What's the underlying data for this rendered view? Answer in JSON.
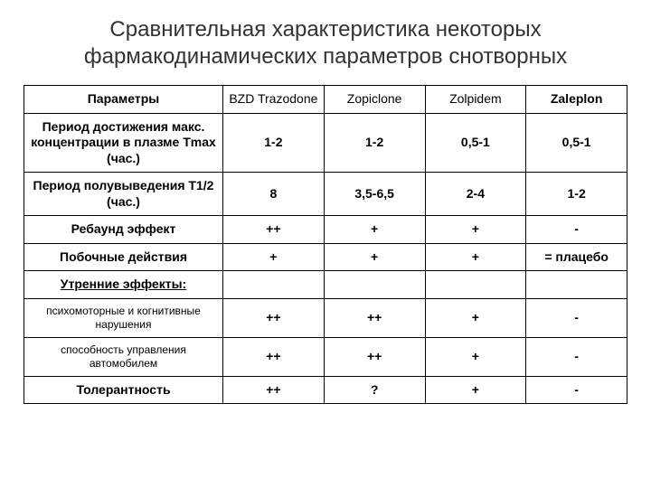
{
  "title": "Сравнительная характеристика некоторых фармакодинамических параметров снотворных",
  "table": {
    "header_param": "Параметры",
    "drugs": [
      {
        "label": "BZD Trazodone",
        "bold": false
      },
      {
        "label": "Zopiclone",
        "bold": false
      },
      {
        "label": "Zolpidem",
        "bold": false
      },
      {
        "label": "Zaleplon",
        "bold": true
      }
    ],
    "rows": [
      {
        "label": "Период достижения макс. концентрации в плазме Tmax (час.)",
        "label_style": "bold",
        "cells": [
          "1-2",
          "1-2",
          "0,5-1",
          "0,5-1"
        ]
      },
      {
        "label": "Период полувыведения T1/2 (час.)",
        "label_style": "bold",
        "cells": [
          "8",
          "3,5-6,5",
          "2-4",
          "1-2"
        ]
      },
      {
        "label": "Ребаунд эффект",
        "label_style": "bold",
        "cells": [
          "++",
          "+",
          "+",
          "-"
        ]
      },
      {
        "label": "Побочные действия",
        "label_style": "bold",
        "cells": [
          "+",
          "+",
          "+",
          "= плацебо"
        ]
      },
      {
        "label": "Утренние эффекты:",
        "label_style": "section",
        "cells": [
          "",
          "",
          "",
          ""
        ]
      },
      {
        "label": "психомоторные и когнитивные нарушения",
        "label_style": "sub",
        "cells": [
          "++",
          "++",
          "+",
          "-"
        ]
      },
      {
        "label": "способность управления автомобилем",
        "label_style": "sub",
        "cells": [
          "++",
          "++",
          "+",
          "-"
        ]
      },
      {
        "label": "Толерантность",
        "label_style": "bold",
        "cells": [
          "++",
          "?",
          "+",
          "-"
        ]
      }
    ]
  },
  "style": {
    "bg": "#ffffff",
    "text": "#000000",
    "title_color": "#333333",
    "border": "#000000",
    "title_fontsize": 24,
    "cell_fontsize": 14,
    "sub_fontsize": 12
  }
}
